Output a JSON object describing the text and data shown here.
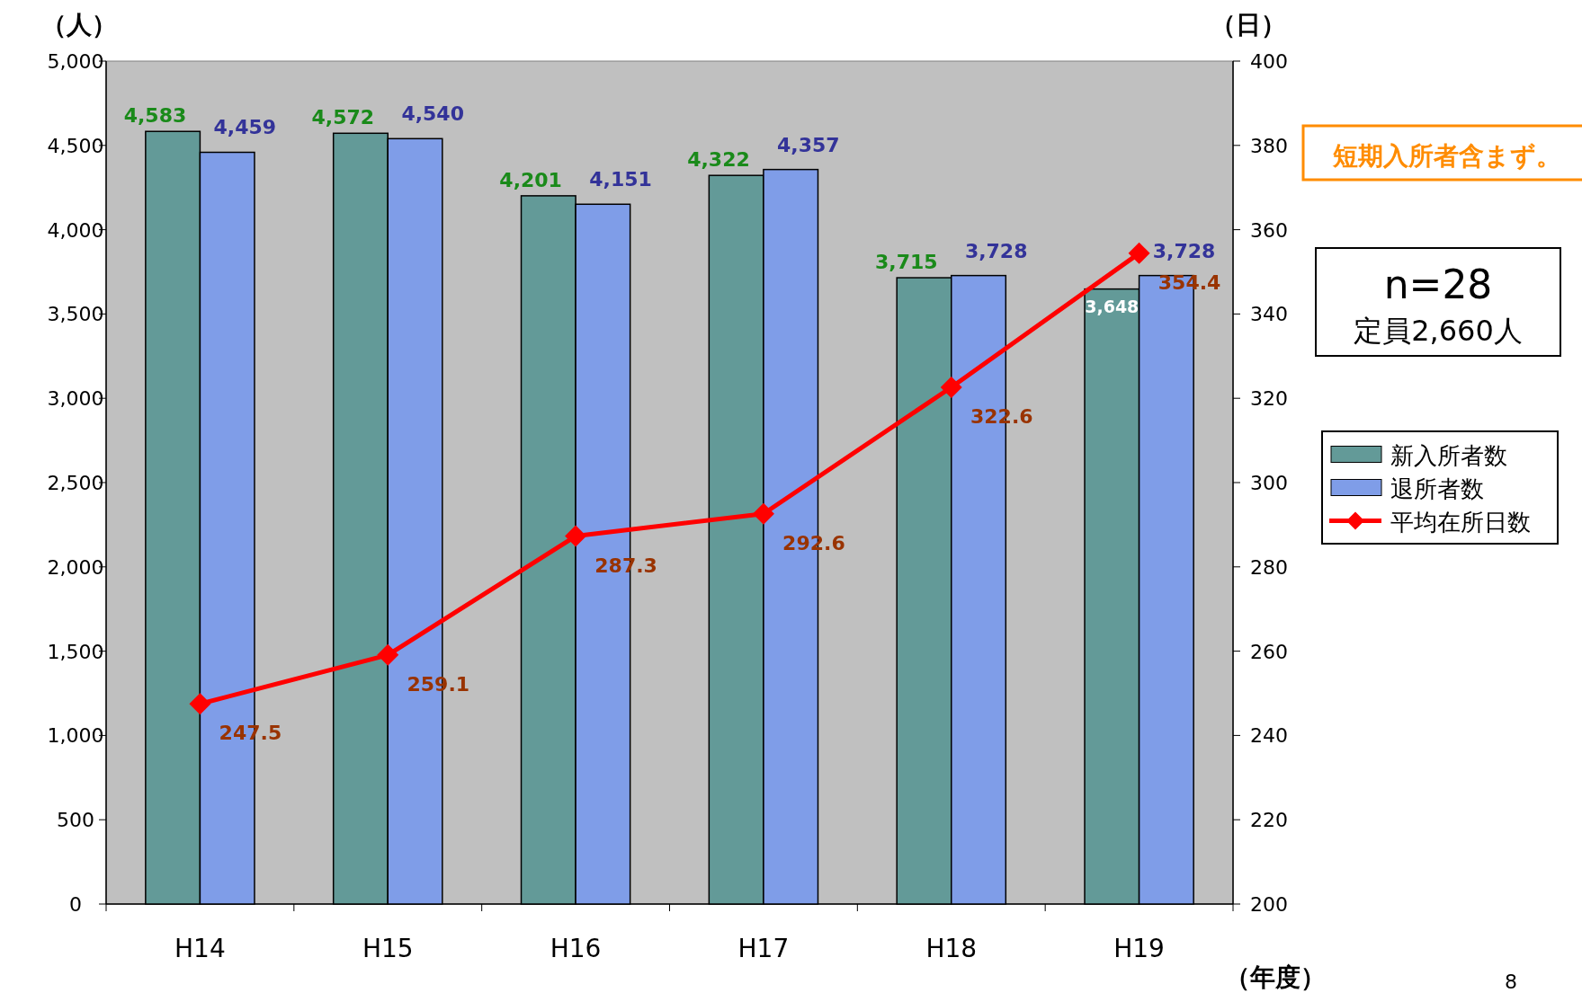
{
  "chart_data": {
    "type": "bar",
    "categories": [
      "H14",
      "H15",
      "H16",
      "H17",
      "H18",
      "H19"
    ],
    "series": [
      {
        "name": "新入所者数",
        "color": "#639a98",
        "values": [
          4583,
          4572,
          4201,
          4322,
          3715,
          3648
        ],
        "value_labels": [
          "4,583",
          "4,572",
          "4,201",
          "4,322",
          "3,715",
          "3,648"
        ]
      },
      {
        "name": "退所者数",
        "color": "#7f9de8",
        "values": [
          4459,
          4540,
          4151,
          4357,
          3728,
          3728
        ],
        "value_labels": [
          "4,459",
          "4,540",
          "4,151",
          "4,357",
          "3,728",
          "3,728"
        ]
      },
      {
        "name": "平均在所日数",
        "type": "line",
        "axis": "y2",
        "color": "#ff0000",
        "marker": "diamond",
        "values": [
          247.5,
          259.1,
          287.3,
          292.6,
          322.6,
          354.4
        ]
      }
    ],
    "ylabel": "（人）",
    "y2label": "（日）",
    "xlabel": "（年度）",
    "ylim": [
      0,
      5000
    ],
    "yticks": [
      0,
      500,
      {
        "value": 1000,
        "label": "1,000"
      },
      {
        "value": 1500,
        "label": "1,500"
      },
      {
        "value": 2000,
        "label": "2,000"
      },
      {
        "value": 2500,
        "label": "2,500"
      },
      {
        "value": 3000,
        "label": "3,000"
      },
      {
        "value": 3500,
        "label": "3,500"
      },
      {
        "value": 4000,
        "label": "4,000"
      },
      {
        "value": 4500,
        "label": "4,500"
      },
      {
        "value": 5000,
        "label": "5,000"
      }
    ],
    "y2lim": [
      200,
      400
    ],
    "y2ticks": [
      200,
      220,
      240,
      260,
      280,
      300,
      320,
      340,
      360,
      380,
      400
    ],
    "data_labels": true,
    "grid": false,
    "legend": "right",
    "annotations": [
      "短期入所者含まず。",
      "n=28",
      "定員2,660人",
      "8"
    ]
  }
}
